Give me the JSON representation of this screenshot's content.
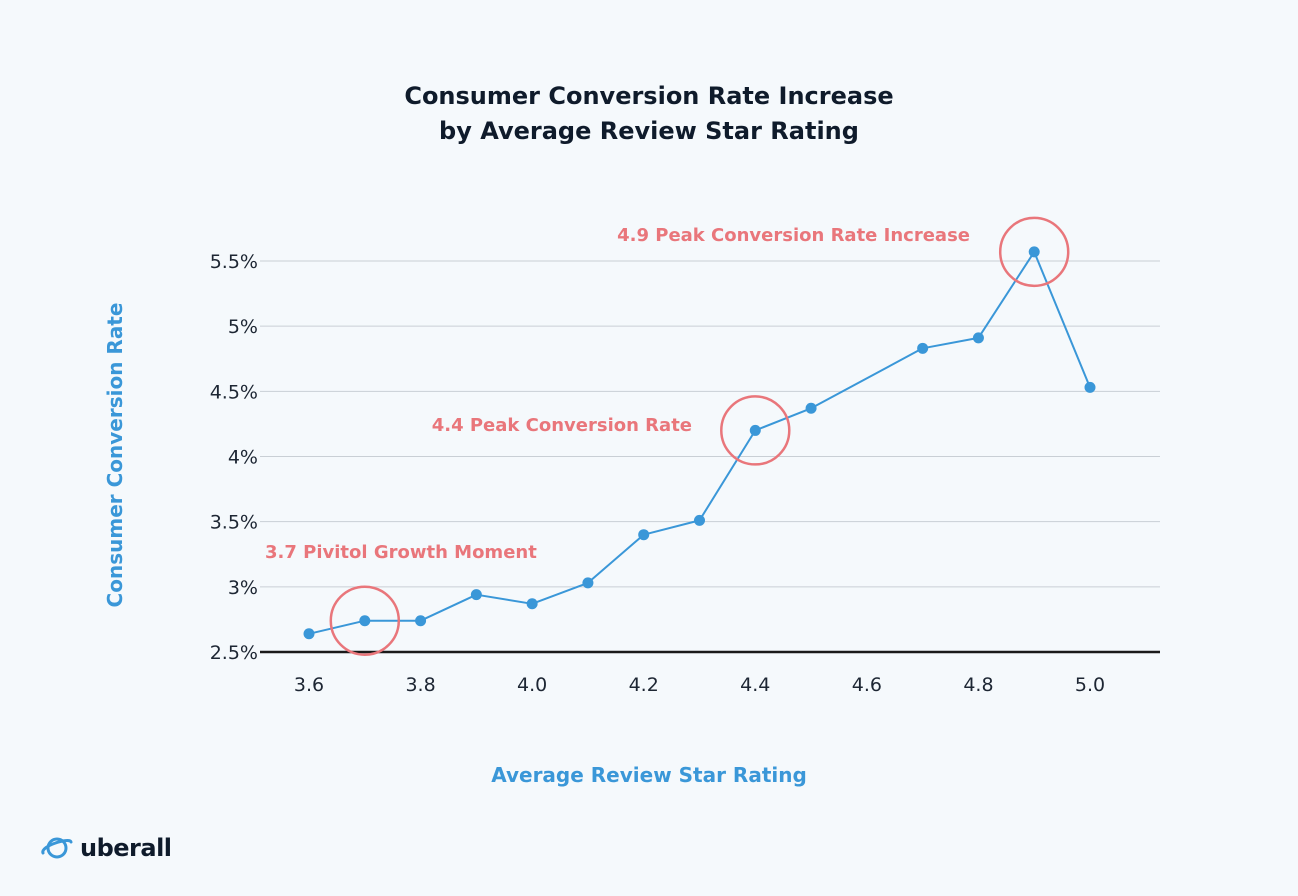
{
  "chart_data": {
    "type": "line",
    "title_line1": "Consumer Conversion Rate Increase",
    "title_line2": "by Average Review Star Rating",
    "xlabel": "Average Review Star Rating",
    "ylabel": "Consumer Conversion Rate",
    "x": [
      3.6,
      3.7,
      3.8,
      3.9,
      4.0,
      4.1,
      4.2,
      4.3,
      4.4,
      4.5,
      4.7,
      4.8,
      4.9,
      5.0
    ],
    "values": [
      2.64,
      2.74,
      2.74,
      2.94,
      2.87,
      3.03,
      3.4,
      3.51,
      4.2,
      4.37,
      4.83,
      4.91,
      5.57,
      4.53
    ],
    "x_ticks": [
      "3.6",
      "3.8",
      "4.0",
      "4.2",
      "4.4",
      "4.6",
      "4.8",
      "5.0"
    ],
    "x_tick_values": [
      3.6,
      3.8,
      4.0,
      4.2,
      4.4,
      4.6,
      4.8,
      5.0
    ],
    "y_ticks": [
      "2.5%",
      "3%",
      "3.5%",
      "4%",
      "4.5%",
      "5%",
      "5.5%"
    ],
    "y_tick_values": [
      2.5,
      3.0,
      3.5,
      4.0,
      4.5,
      5.0,
      5.5
    ],
    "xlim": [
      3.6,
      5.0
    ],
    "ylim": [
      2.5,
      5.5
    ],
    "grid": true,
    "annotations": [
      {
        "x": 3.7,
        "y": 2.74,
        "text": "3.7 Pivitol Growth Moment"
      },
      {
        "x": 4.4,
        "y": 4.2,
        "text": "4.4 Peak Conversion Rate"
      },
      {
        "x": 4.9,
        "y": 5.57,
        "text": "4.9 Peak Conversion Rate Increase"
      }
    ],
    "colors": {
      "line": "#3a97d8",
      "annotation": "#e9767b",
      "grid": "#c9cfd5",
      "axis": "#1a1a1a",
      "tick_text": "#1d2633",
      "title": "#0f1b2b"
    }
  },
  "logo": {
    "text": "uberall",
    "icon": "planet-icon"
  }
}
